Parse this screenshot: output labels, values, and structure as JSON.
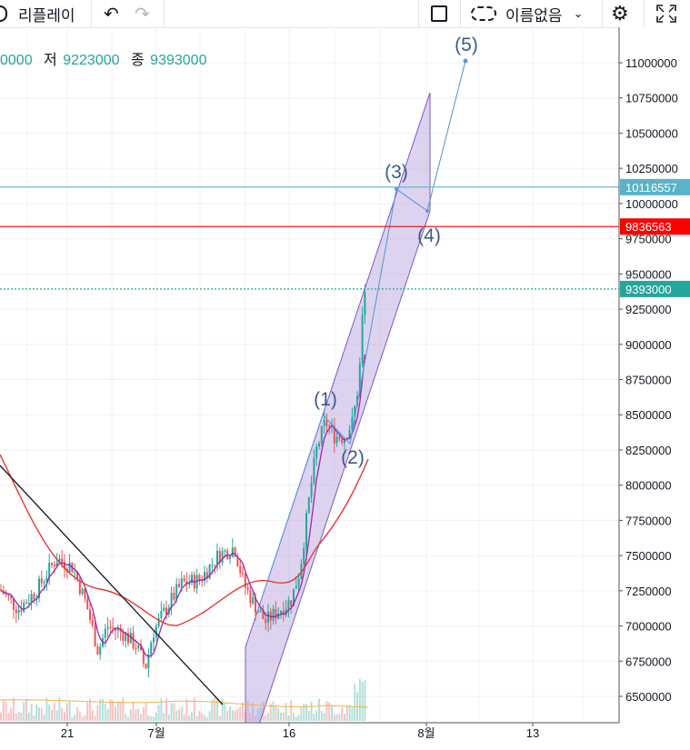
{
  "toolbar": {
    "replay_label": "리플레이",
    "undo_icon": "undo-icon",
    "redo_icon": "redo-icon",
    "layout_icon": "square-layout-icon",
    "cloud_icon": "cloud-save-icon",
    "layout_name": "이름없음",
    "dropdown_icon": "chevron-down-icon",
    "settings_icon": "gear-icon",
    "fullscreen_icon": "fullscreen-icon"
  },
  "legend": {
    "partial_value": "0000",
    "low_label": "저",
    "low_value": "9223000",
    "close_label": "종",
    "close_value": "9393000",
    "value_color": "#26a69a"
  },
  "chart_data": {
    "type": "candlestick",
    "y_axis": {
      "ticks": [
        "11000000",
        "10750000",
        "10500000",
        "10250000",
        "10000000",
        "9750000",
        "9500000",
        "9250000",
        "9000000",
        "8750000",
        "8500000",
        "8250000",
        "8000000",
        "7750000",
        "7500000",
        "7250000",
        "7000000",
        "6750000",
        "6500000"
      ],
      "range": [
        6320000,
        11230000
      ]
    },
    "x_axis": {
      "ticks": [
        "21",
        "7월",
        "16",
        "8월",
        "13"
      ]
    },
    "price_markers": [
      {
        "value": "10116557",
        "color": "#5ab3c8",
        "line_style": "solid"
      },
      {
        "value": "9836563",
        "color": "#ff0000",
        "line_style": "solid"
      },
      {
        "value": "9393000",
        "color": "#26a69a",
        "line_style": "dotted"
      }
    ],
    "elliott_wave_labels": [
      "(1)",
      "(2)",
      "(3)",
      "(4)",
      "(5)"
    ],
    "elliott_wave_points": [
      {
        "label": "(1)",
        "value": 8490000
      },
      {
        "label": "(2)",
        "value": 8320000
      },
      {
        "label": "(3)",
        "value": 10130000
      },
      {
        "label": "(4)",
        "value": 9930000
      },
      {
        "label": "(5)",
        "value": 11020000
      }
    ],
    "colors": {
      "up": "#26a69a",
      "down": "#ef5350",
      "channel_fill": "#b39ddb",
      "ma_red": "#e53935",
      "ma_purple": "#9c27b0",
      "wave_line": "#5b9bd5"
    }
  }
}
